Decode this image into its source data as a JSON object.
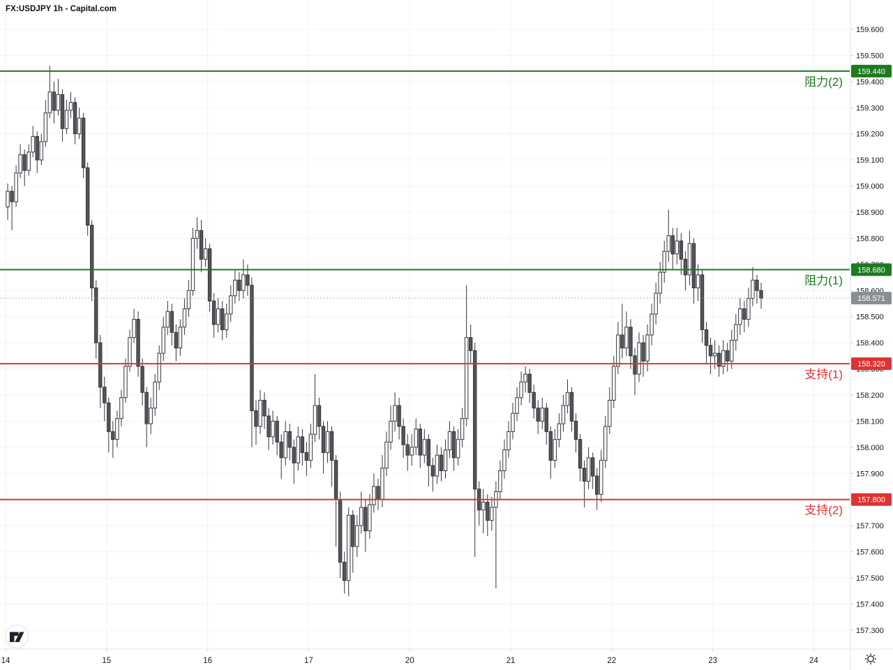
{
  "header": {
    "title": "FX:USDJPY 1h - Capital.com"
  },
  "colors": {
    "background": "#ffffff",
    "grid": "#f2f3f5",
    "axis_text": "#131722",
    "axis_border": "#e0e3eb",
    "axis_tick": "#d1d4dc",
    "candle_up_fill": "#ffffff",
    "candle_down_fill": "#54555a",
    "candle_stroke": "#33343a",
    "resistance": "#1c7a1f",
    "support": "#e03232",
    "last_price_badge": "#8b8d94",
    "last_price_line": "#9ca0aa",
    "logo_glyph": "#1e222d"
  },
  "chart_data": {
    "type": "candlestick",
    "symbol": "FX:USDJPY",
    "interval": "1h",
    "title": "FX:USDJPY 1h - Capital.com",
    "y_axis": {
      "min": 157.3,
      "max": 159.6,
      "step": 0.1,
      "label_decimals": 3
    },
    "x_axis": {
      "day_labels": [
        "14",
        "15",
        "16",
        "17",
        "20",
        "21",
        "22",
        "23",
        "24"
      ],
      "candles_per_day": 24
    },
    "levels": [
      {
        "label": "阻力(2)",
        "price": 159.44,
        "badge": "159.440",
        "kind": "resistance"
      },
      {
        "label": "阻力(1)",
        "price": 158.68,
        "badge": "158.680",
        "kind": "resistance"
      },
      {
        "label": "支持(1)",
        "price": 158.32,
        "badge": "158.320",
        "kind": "support"
      },
      {
        "label": "支持(2)",
        "price": 157.8,
        "badge": "157.800",
        "kind": "support"
      }
    ],
    "last_price": {
      "value": 158.571,
      "badge": "158.571"
    },
    "candles_ohlc": [
      [
        158.92,
        159.01,
        158.87,
        158.98
      ],
      [
        158.98,
        159.0,
        158.83,
        158.94
      ],
      [
        158.94,
        159.08,
        158.92,
        159.05
      ],
      [
        159.05,
        159.16,
        159.03,
        159.12
      ],
      [
        159.12,
        159.14,
        159.0,
        159.06
      ],
      [
        159.06,
        159.16,
        159.04,
        159.13
      ],
      [
        159.13,
        159.23,
        159.11,
        159.19
      ],
      [
        159.19,
        159.21,
        159.05,
        159.1
      ],
      [
        159.1,
        159.2,
        159.08,
        159.17
      ],
      [
        159.17,
        159.33,
        159.15,
        159.28
      ],
      [
        159.28,
        159.46,
        159.26,
        159.36
      ],
      [
        159.36,
        159.4,
        159.24,
        159.29
      ],
      [
        159.29,
        159.41,
        159.27,
        159.35
      ],
      [
        159.35,
        159.37,
        159.17,
        159.22
      ],
      [
        159.22,
        159.33,
        159.2,
        159.29
      ],
      [
        159.29,
        159.36,
        159.26,
        159.32
      ],
      [
        159.32,
        159.34,
        159.16,
        159.2
      ],
      [
        159.2,
        159.3,
        159.18,
        159.26
      ],
      [
        159.26,
        159.28,
        159.03,
        159.07
      ],
      [
        159.07,
        159.09,
        158.81,
        158.85
      ],
      [
        158.85,
        158.87,
        158.56,
        158.61
      ],
      [
        158.61,
        158.64,
        158.34,
        158.4
      ],
      [
        158.4,
        158.43,
        158.15,
        158.23
      ],
      [
        158.23,
        158.27,
        158.1,
        158.17
      ],
      [
        158.17,
        158.19,
        157.98,
        158.06
      ],
      [
        158.06,
        158.1,
        157.96,
        158.03
      ],
      [
        158.03,
        158.14,
        158.0,
        158.11
      ],
      [
        158.11,
        158.22,
        158.08,
        158.19
      ],
      [
        158.19,
        158.34,
        158.17,
        158.31
      ],
      [
        158.31,
        158.45,
        158.29,
        158.42
      ],
      [
        158.42,
        158.53,
        158.4,
        158.49
      ],
      [
        158.49,
        158.52,
        158.27,
        158.31
      ],
      [
        158.31,
        158.34,
        158.16,
        158.21
      ],
      [
        158.21,
        158.23,
        158.0,
        158.09
      ],
      [
        158.09,
        158.19,
        158.05,
        158.15
      ],
      [
        158.15,
        158.28,
        158.12,
        158.25
      ],
      [
        158.25,
        158.39,
        158.22,
        158.36
      ],
      [
        158.36,
        158.5,
        158.33,
        158.46
      ],
      [
        158.46,
        158.56,
        158.43,
        158.52
      ],
      [
        158.52,
        158.55,
        158.39,
        158.44
      ],
      [
        158.44,
        158.47,
        158.33,
        158.38
      ],
      [
        158.38,
        158.49,
        158.35,
        158.46
      ],
      [
        158.46,
        158.57,
        158.43,
        158.53
      ],
      [
        158.53,
        158.64,
        158.5,
        158.6
      ],
      [
        158.6,
        158.84,
        158.58,
        158.8
      ],
      [
        158.8,
        158.88,
        158.76,
        158.83
      ],
      [
        158.83,
        158.87,
        158.67,
        158.72
      ],
      [
        158.72,
        158.8,
        158.69,
        158.76
      ],
      [
        158.76,
        158.78,
        158.52,
        158.56
      ],
      [
        158.56,
        158.59,
        158.42,
        158.47
      ],
      [
        158.47,
        158.57,
        158.44,
        158.53
      ],
      [
        158.53,
        158.56,
        158.41,
        158.45
      ],
      [
        158.45,
        158.55,
        158.42,
        158.51
      ],
      [
        158.51,
        158.62,
        158.48,
        158.58
      ],
      [
        158.58,
        158.68,
        158.55,
        158.64
      ],
      [
        158.64,
        158.67,
        158.56,
        158.6
      ],
      [
        158.6,
        158.72,
        158.57,
        158.66
      ],
      [
        158.66,
        158.7,
        158.58,
        158.62
      ],
      [
        158.62,
        158.65,
        158.0,
        158.14
      ],
      [
        158.14,
        158.18,
        158.01,
        158.08
      ],
      [
        158.08,
        158.22,
        158.05,
        158.18
      ],
      [
        158.18,
        158.21,
        158.07,
        158.12
      ],
      [
        158.12,
        158.15,
        157.99,
        158.04
      ],
      [
        158.04,
        158.14,
        158.01,
        158.1
      ],
      [
        158.1,
        158.12,
        157.97,
        158.02
      ],
      [
        158.02,
        158.05,
        157.88,
        157.96
      ],
      [
        157.96,
        158.1,
        157.93,
        158.06
      ],
      [
        158.06,
        158.09,
        157.95,
        158.0
      ],
      [
        158.0,
        158.03,
        157.86,
        157.94
      ],
      [
        157.94,
        158.08,
        157.91,
        158.04
      ],
      [
        158.04,
        158.07,
        157.93,
        157.98
      ],
      [
        157.98,
        158.02,
        157.89,
        157.95
      ],
      [
        157.95,
        158.09,
        157.92,
        158.05
      ],
      [
        158.05,
        158.28,
        158.02,
        158.16
      ],
      [
        158.16,
        158.19,
        158.03,
        158.08
      ],
      [
        158.08,
        158.1,
        157.9,
        157.98
      ],
      [
        157.98,
        158.1,
        157.94,
        158.06
      ],
      [
        158.06,
        158.08,
        157.85,
        157.95
      ],
      [
        157.95,
        157.97,
        157.62,
        157.8
      ],
      [
        157.8,
        157.83,
        157.5,
        157.56
      ],
      [
        157.56,
        157.6,
        157.44,
        157.49
      ],
      [
        157.49,
        157.77,
        157.43,
        157.74
      ],
      [
        157.74,
        157.76,
        157.52,
        157.62
      ],
      [
        157.62,
        157.74,
        157.58,
        157.7
      ],
      [
        157.7,
        157.83,
        157.67,
        157.77
      ],
      [
        157.77,
        157.8,
        157.6,
        157.68
      ],
      [
        157.68,
        157.82,
        157.65,
        157.78
      ],
      [
        157.78,
        157.9,
        157.75,
        157.85
      ],
      [
        157.85,
        157.88,
        157.76,
        157.8
      ],
      [
        157.8,
        157.97,
        157.77,
        157.92
      ],
      [
        157.92,
        158.06,
        157.89,
        158.02
      ],
      [
        158.02,
        158.16,
        157.99,
        158.1
      ],
      [
        158.1,
        158.21,
        158.06,
        158.16
      ],
      [
        158.16,
        158.19,
        158.03,
        158.08
      ],
      [
        158.08,
        158.11,
        157.96,
        158.01
      ],
      [
        158.01,
        158.05,
        157.91,
        157.97
      ],
      [
        157.97,
        158.05,
        157.93,
        158.0
      ],
      [
        158.0,
        158.11,
        157.97,
        158.07
      ],
      [
        158.07,
        158.09,
        157.92,
        157.97
      ],
      [
        157.97,
        158.07,
        157.94,
        158.03
      ],
      [
        158.03,
        158.05,
        157.85,
        157.93
      ],
      [
        157.93,
        157.96,
        157.83,
        157.89
      ],
      [
        157.89,
        158.01,
        157.86,
        157.97
      ],
      [
        157.97,
        158.0,
        157.87,
        157.91
      ],
      [
        157.91,
        158.03,
        157.88,
        157.99
      ],
      [
        157.99,
        158.1,
        157.96,
        158.06
      ],
      [
        158.06,
        158.08,
        157.91,
        157.96
      ],
      [
        157.96,
        158.07,
        157.93,
        158.03
      ],
      [
        158.03,
        158.15,
        158.0,
        158.11
      ],
      [
        158.11,
        158.62,
        158.08,
        158.42
      ],
      [
        158.42,
        158.47,
        158.32,
        158.37
      ],
      [
        158.37,
        158.4,
        157.58,
        157.84
      ],
      [
        157.84,
        157.87,
        157.7,
        157.76
      ],
      [
        157.76,
        157.84,
        157.67,
        157.79
      ],
      [
        157.79,
        157.82,
        157.66,
        157.72
      ],
      [
        157.72,
        157.81,
        157.68,
        157.77
      ],
      [
        157.77,
        157.87,
        157.46,
        157.83
      ],
      [
        157.83,
        157.95,
        157.8,
        157.91
      ],
      [
        157.91,
        158.03,
        157.88,
        157.99
      ],
      [
        157.99,
        158.1,
        157.96,
        158.06
      ],
      [
        158.06,
        158.17,
        158.03,
        158.13
      ],
      [
        158.13,
        158.23,
        158.1,
        158.19
      ],
      [
        158.19,
        158.29,
        158.16,
        158.25
      ],
      [
        158.25,
        158.31,
        158.21,
        158.28
      ],
      [
        158.28,
        158.3,
        158.17,
        158.21
      ],
      [
        158.21,
        158.24,
        158.11,
        158.15
      ],
      [
        158.15,
        158.18,
        158.05,
        158.1
      ],
      [
        158.1,
        158.19,
        158.07,
        158.15
      ],
      [
        158.15,
        158.17,
        158.01,
        158.06
      ],
      [
        158.06,
        158.08,
        157.88,
        157.95
      ],
      [
        157.95,
        158.07,
        157.92,
        158.03
      ],
      [
        158.03,
        158.13,
        158.0,
        158.09
      ],
      [
        158.09,
        158.2,
        158.06,
        158.16
      ],
      [
        158.16,
        158.26,
        158.13,
        158.21
      ],
      [
        158.21,
        158.23,
        158.06,
        158.1
      ],
      [
        158.1,
        158.13,
        157.98,
        158.03
      ],
      [
        158.03,
        158.05,
        157.87,
        157.92
      ],
      [
        157.92,
        157.95,
        157.77,
        157.87
      ],
      [
        157.87,
        158.0,
        157.84,
        157.96
      ],
      [
        157.96,
        157.98,
        157.84,
        157.89
      ],
      [
        157.89,
        157.92,
        157.76,
        157.82
      ],
      [
        157.82,
        157.99,
        157.79,
        157.95
      ],
      [
        157.95,
        158.12,
        157.92,
        158.08
      ],
      [
        158.08,
        158.23,
        158.05,
        158.18
      ],
      [
        158.18,
        158.35,
        158.15,
        158.31
      ],
      [
        158.31,
        158.48,
        158.28,
        158.43
      ],
      [
        158.43,
        158.55,
        158.34,
        158.38
      ],
      [
        158.38,
        158.52,
        158.35,
        158.46
      ],
      [
        158.46,
        158.49,
        158.3,
        158.35
      ],
      [
        158.35,
        158.38,
        158.2,
        158.28
      ],
      [
        158.28,
        158.44,
        158.25,
        158.4
      ],
      [
        158.4,
        158.43,
        158.27,
        158.33
      ],
      [
        158.33,
        158.47,
        158.29,
        158.43
      ],
      [
        158.43,
        158.55,
        158.39,
        158.51
      ],
      [
        158.51,
        158.63,
        158.47,
        158.59
      ],
      [
        158.59,
        158.71,
        158.55,
        158.67
      ],
      [
        158.67,
        158.79,
        158.63,
        158.75
      ],
      [
        158.75,
        158.91,
        158.71,
        158.81
      ],
      [
        158.81,
        158.84,
        158.68,
        158.74
      ],
      [
        158.74,
        158.84,
        158.7,
        158.79
      ],
      [
        158.79,
        158.82,
        158.66,
        158.72
      ],
      [
        158.72,
        158.75,
        158.6,
        158.66
      ],
      [
        158.66,
        158.83,
        158.62,
        158.78
      ],
      [
        158.78,
        158.8,
        158.55,
        158.61
      ],
      [
        158.61,
        158.7,
        158.56,
        158.66
      ],
      [
        158.66,
        158.68,
        158.4,
        158.45
      ],
      [
        158.45,
        158.48,
        158.32,
        158.39
      ],
      [
        158.39,
        158.42,
        158.28,
        158.35
      ],
      [
        158.35,
        158.41,
        158.3,
        158.36
      ],
      [
        158.36,
        158.39,
        158.27,
        158.31
      ],
      [
        158.31,
        158.41,
        158.28,
        158.37
      ],
      [
        158.37,
        158.4,
        158.29,
        158.33
      ],
      [
        158.33,
        158.45,
        158.3,
        158.41
      ],
      [
        158.41,
        158.51,
        158.37,
        158.47
      ],
      [
        158.47,
        158.57,
        158.43,
        158.53
      ],
      [
        158.53,
        158.56,
        158.44,
        158.49
      ],
      [
        158.49,
        158.61,
        158.46,
        158.57
      ],
      [
        158.57,
        158.69,
        158.54,
        158.64
      ],
      [
        158.64,
        158.66,
        158.55,
        158.6
      ],
      [
        158.6,
        158.63,
        158.53,
        158.571
      ]
    ]
  }
}
